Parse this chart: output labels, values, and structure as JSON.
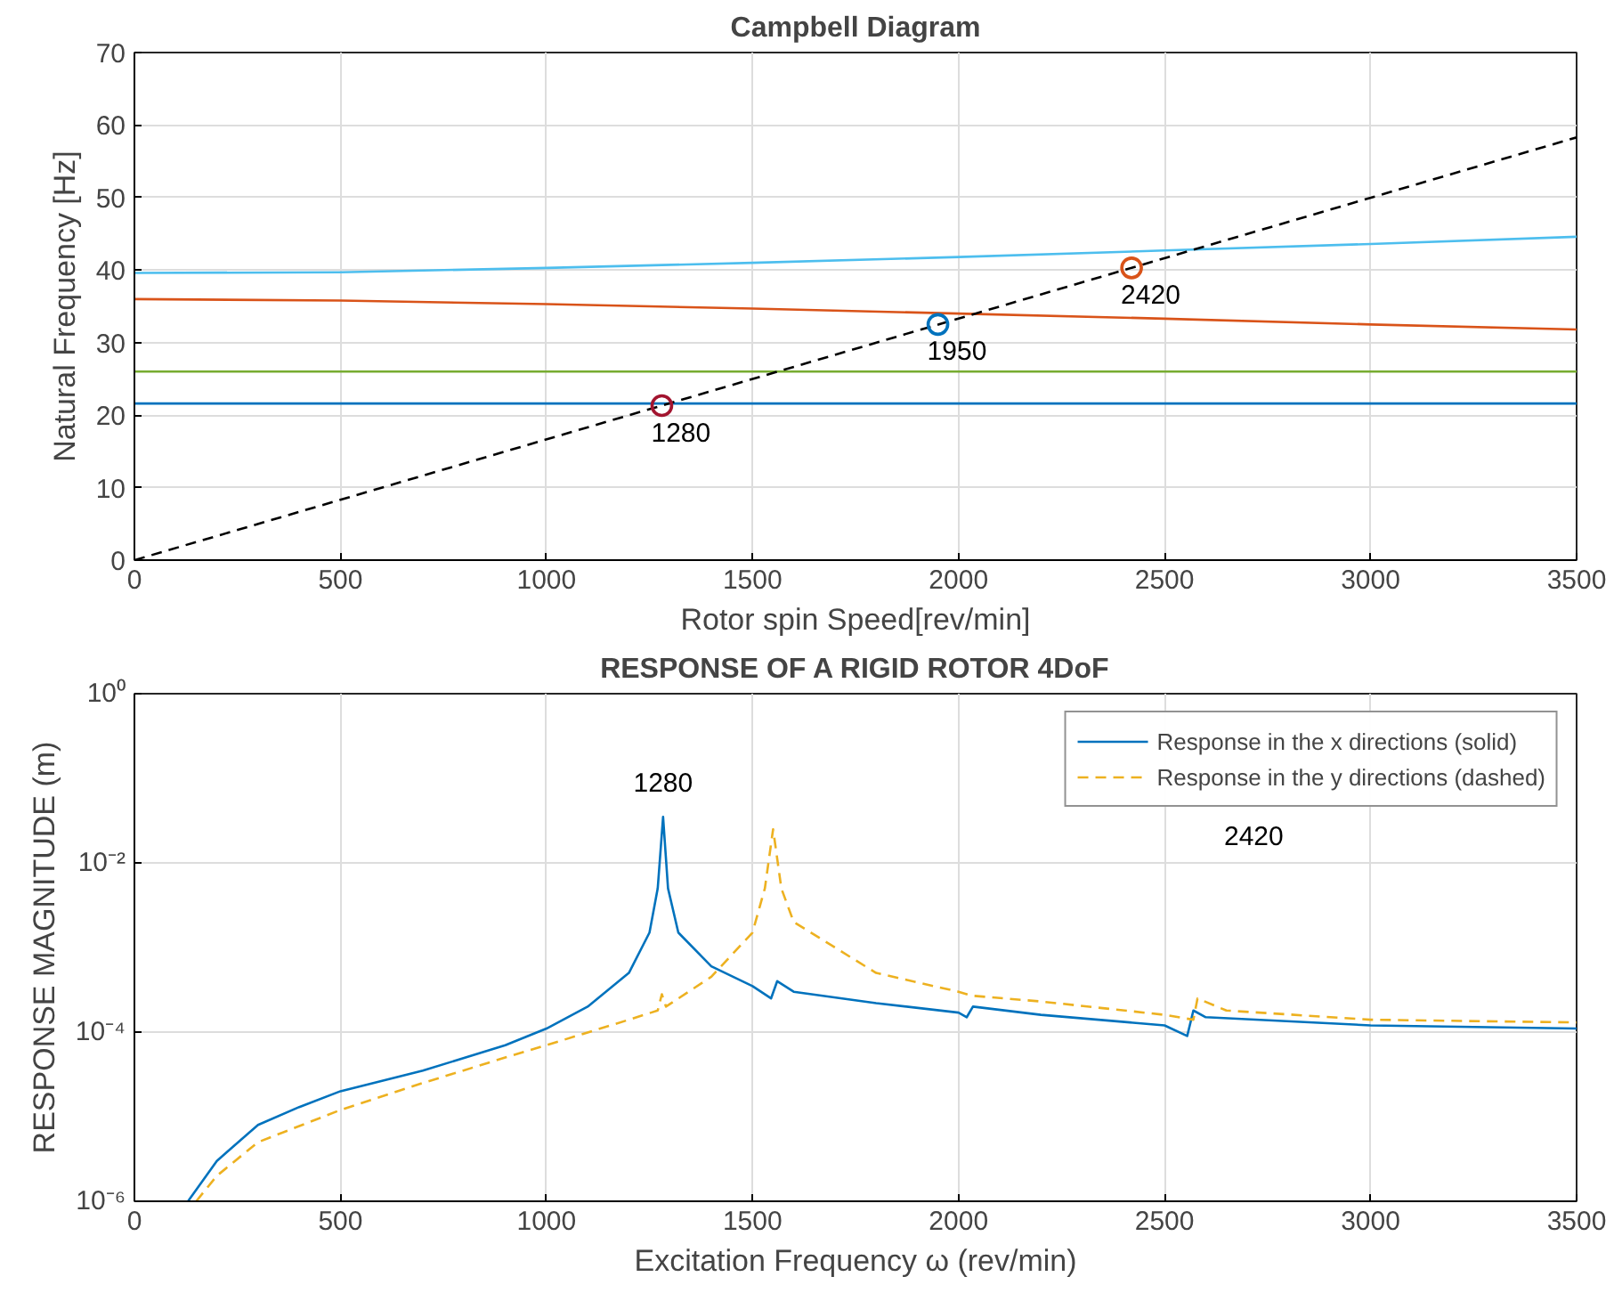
{
  "chart_data": [
    {
      "type": "line",
      "title": "Campbell Diagram",
      "xlabel": "Rotor spin Speed[rev/min]",
      "ylabel": "Natural Frequency [Hz]",
      "xlim": [
        0,
        3500
      ],
      "ylim": [
        0,
        70
      ],
      "xticks": [
        0,
        500,
        1000,
        1500,
        2000,
        2500,
        3000,
        3500
      ],
      "yticks": [
        0,
        10,
        20,
        30,
        40,
        50,
        60,
        70
      ],
      "grid": true,
      "series": [
        {
          "color": "#4dbeee",
          "x": [
            0,
            500,
            1000,
            1500,
            2000,
            2500,
            3000,
            3500
          ],
          "values": [
            39.6,
            39.7,
            40.3,
            41.0,
            41.8,
            42.7,
            43.6,
            44.6
          ]
        },
        {
          "color": "#d95319",
          "x": [
            0,
            500,
            1000,
            1500,
            2000,
            2500,
            3000,
            3500
          ],
          "values": [
            36.0,
            35.8,
            35.3,
            34.7,
            34.0,
            33.3,
            32.5,
            31.8
          ]
        },
        {
          "color": "#77ac30",
          "x": [
            0,
            3500
          ],
          "values": [
            26.0,
            26.0
          ]
        },
        {
          "color": "#0072bd",
          "x": [
            0,
            3500
          ],
          "values": [
            21.6,
            21.6
          ]
        },
        {
          "color": "#000000",
          "x": [
            0,
            3500
          ],
          "values": [
            0,
            58.3
          ],
          "line_style": "dashed"
        },
        {
          "type": "scatter",
          "marker": "circle",
          "color": "#a2142f",
          "x": [
            1280
          ],
          "values": [
            21.3
          ]
        },
        {
          "type": "scatter",
          "marker": "circle",
          "color": "#0072bd",
          "x": [
            1950
          ],
          "values": [
            32.5
          ]
        },
        {
          "type": "scatter",
          "marker": "circle",
          "color": "#d95319",
          "x": [
            2420
          ],
          "values": [
            40.3
          ]
        }
      ],
      "annotations": [
        {
          "text": "1280",
          "x": 1280,
          "y": 21.3
        },
        {
          "text": "1950",
          "x": 1950,
          "y": 32.5
        },
        {
          "text": "2420",
          "x": 2420,
          "y": 40.3
        }
      ]
    },
    {
      "type": "line",
      "title": "RESPONSE OF A RIGID ROTOR 4DoF",
      "xlabel": "Excitation Frequency ω (rev/min)",
      "ylabel": "RESPONSE MAGNITUDE (m)",
      "log": "y",
      "xlim": [
        0,
        3500
      ],
      "ylim": [
        1e-06,
        1
      ],
      "xticks": [
        0,
        500,
        1000,
        1500,
        2000,
        2500,
        3000,
        3500
      ],
      "yticks": [
        {
          "value": 1e-06,
          "label": "10⁻⁶"
        },
        {
          "value": 0.0001,
          "label": "10⁻⁴"
        },
        {
          "value": 0.01,
          "label": "10⁻²"
        },
        {
          "value": 1,
          "label": "10⁰"
        }
      ],
      "grid": true,
      "legend": "top right",
      "series": [
        {
          "name": "Response in the x directions (solid)",
          "color": "#0072bd",
          "line_style": "solid",
          "x": [
            130,
            200,
            300,
            400,
            500,
            700,
            900,
            1000,
            1100,
            1200,
            1250,
            1270,
            1283,
            1295,
            1320,
            1400,
            1500,
            1545,
            1560,
            1600,
            1800,
            2000,
            2020,
            2035,
            2200,
            2500,
            2555,
            2570,
            2600,
            3000,
            3500
          ],
          "values": [
            1e-06,
            3e-06,
            8e-06,
            1.3e-05,
            2e-05,
            3.5e-05,
            7e-05,
            0.00011,
            0.0002,
            0.0005,
            0.0015,
            0.005,
            0.035,
            0.005,
            0.0015,
            0.0006,
            0.00035,
            0.00025,
            0.0004,
            0.0003,
            0.00022,
            0.00017,
            0.00015,
            0.0002,
            0.00016,
            0.00012,
            9e-05,
            0.00018,
            0.00015,
            0.00012,
            0.00011
          ]
        },
        {
          "name": "Response in the y directions (dashed)",
          "color": "#edb120",
          "line_style": "dashed",
          "x": [
            150,
            200,
            300,
            500,
            700,
            900,
            1000,
            1200,
            1270,
            1280,
            1290,
            1400,
            1500,
            1530,
            1550,
            1570,
            1600,
            1800,
            2000,
            2030,
            2200,
            2500,
            2570,
            2580,
            2650,
            3000,
            3500
          ],
          "values": [
            1e-06,
            2e-06,
            5e-06,
            1.2e-05,
            2.5e-05,
            5e-05,
            7e-05,
            0.00014,
            0.00018,
            0.00028,
            0.0002,
            0.00045,
            0.0015,
            0.005,
            0.025,
            0.005,
            0.002,
            0.0005,
            0.0003,
            0.00027,
            0.00023,
            0.00016,
            0.00014,
            0.00025,
            0.00018,
            0.00014,
            0.00013
          ]
        }
      ],
      "annotations": [
        {
          "text": "1280",
          "x": 1283,
          "y": 0.035
        },
        "2420"
      ]
    }
  ]
}
